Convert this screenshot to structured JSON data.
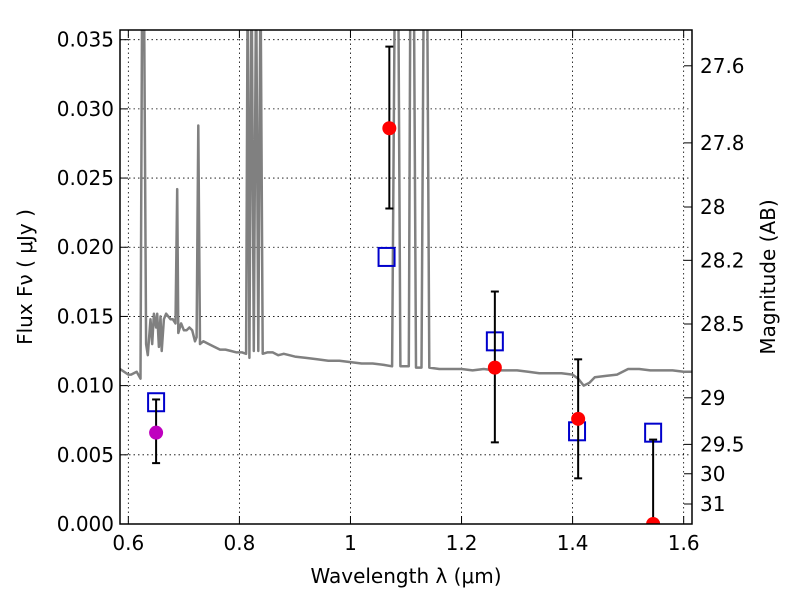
{
  "chart_data": {
    "type": "scatter",
    "xlabel": "Wavelength λ (μm)",
    "ylabel": "Flux Fν ( μJy )",
    "y2label": "Magnitude (AB)",
    "xlim": [
      0.585,
      1.615
    ],
    "ylim": [
      0.0,
      0.0357
    ],
    "grid": true,
    "x_ticks": [
      0.6,
      0.8,
      1.0,
      1.2,
      1.4,
      1.6
    ],
    "x_tick_labels": [
      "0.6",
      "0.8",
      "1",
      "1.2",
      "1.4",
      "1.6"
    ],
    "y_ticks": [
      0.0,
      0.005,
      0.01,
      0.015,
      0.02,
      0.025,
      0.03,
      0.035
    ],
    "y_tick_labels": [
      "0.000",
      "0.005",
      "0.010",
      "0.015",
      "0.020",
      "0.025",
      "0.030",
      "0.035"
    ],
    "mag_ticks": [
      27.6,
      27.8,
      28,
      28.2,
      28.5,
      29,
      29.5,
      30,
      31
    ],
    "mag_tick_labels": [
      "27.6",
      "27.8",
      "28",
      "28.2",
      "28.5",
      "29",
      "29.5",
      "30",
      "31"
    ],
    "colors": {
      "model": "#808080",
      "observed": "#ff0000",
      "observed_optical": "#bf00bf",
      "model_photometry": "#0000cc",
      "errorbar": "#000000"
    },
    "observed_points": [
      {
        "x": 0.65,
        "y": 0.0066,
        "yerr_low": 0.0044,
        "yerr_high": 0.009,
        "color": "#bf00bf"
      },
      {
        "x": 1.07,
        "y": 0.0286,
        "yerr_low": 0.0228,
        "yerr_high": 0.0345,
        "color": "#ff0000"
      },
      {
        "x": 1.26,
        "y": 0.0113,
        "yerr_low": 0.0059,
        "yerr_high": 0.0168,
        "color": "#ff0000"
      },
      {
        "x": 1.41,
        "y": 0.0076,
        "yerr_low": 0.0033,
        "yerr_high": 0.0119,
        "color": "#ff0000"
      },
      {
        "x": 1.545,
        "y": 0.0,
        "yerr_low": 0.0,
        "yerr_high": 0.0061,
        "color": "#ff0000"
      }
    ],
    "model_photometry": [
      {
        "x": 0.65,
        "y": 0.0088
      },
      {
        "x": 1.065,
        "y": 0.0193
      },
      {
        "x": 1.26,
        "y": 0.0132
      },
      {
        "x": 1.408,
        "y": 0.0067
      },
      {
        "x": 1.545,
        "y": 0.0066
      }
    ],
    "model_spectrum": [
      [
        0.585,
        0.0112
      ],
      [
        0.6,
        0.0108
      ],
      [
        0.605,
        0.0108
      ],
      [
        0.615,
        0.011
      ],
      [
        0.622,
        0.0105
      ],
      [
        0.625,
        0.04
      ],
      [
        0.628,
        0.04
      ],
      [
        0.632,
        0.013
      ],
      [
        0.635,
        0.0122
      ],
      [
        0.64,
        0.0148
      ],
      [
        0.643,
        0.013
      ],
      [
        0.646,
        0.0152
      ],
      [
        0.65,
        0.0142
      ],
      [
        0.652,
        0.0152
      ],
      [
        0.655,
        0.0128
      ],
      [
        0.658,
        0.015
      ],
      [
        0.66,
        0.0125
      ],
      [
        0.664,
        0.0148
      ],
      [
        0.668,
        0.0152
      ],
      [
        0.672,
        0.015
      ],
      [
        0.676,
        0.0148
      ],
      [
        0.68,
        0.0148
      ],
      [
        0.685,
        0.0145
      ],
      [
        0.688,
        0.0242
      ],
      [
        0.69,
        0.0138
      ],
      [
        0.695,
        0.0145
      ],
      [
        0.7,
        0.014
      ],
      [
        0.705,
        0.014
      ],
      [
        0.71,
        0.0142
      ],
      [
        0.715,
        0.014
      ],
      [
        0.72,
        0.0132
      ],
      [
        0.723,
        0.0135
      ],
      [
        0.726,
        0.0288
      ],
      [
        0.729,
        0.013
      ],
      [
        0.735,
        0.0132
      ],
      [
        0.745,
        0.013
      ],
      [
        0.755,
        0.0128
      ],
      [
        0.765,
        0.0126
      ],
      [
        0.775,
        0.0126
      ],
      [
        0.785,
        0.0125
      ],
      [
        0.795,
        0.0124
      ],
      [
        0.805,
        0.0124
      ],
      [
        0.812,
        0.0123
      ],
      [
        0.815,
        0.04
      ],
      [
        0.818,
        0.012
      ],
      [
        0.822,
        0.04
      ],
      [
        0.826,
        0.0125
      ],
      [
        0.83,
        0.04
      ],
      [
        0.834,
        0.0125
      ],
      [
        0.838,
        0.04
      ],
      [
        0.842,
        0.0123
      ],
      [
        0.85,
        0.0124
      ],
      [
        0.86,
        0.0124
      ],
      [
        0.87,
        0.0122
      ],
      [
        0.88,
        0.0123
      ],
      [
        0.89,
        0.0122
      ],
      [
        0.9,
        0.0121
      ],
      [
        0.92,
        0.012
      ],
      [
        0.94,
        0.0119
      ],
      [
        0.96,
        0.0118
      ],
      [
        0.98,
        0.0118
      ],
      [
        1.0,
        0.0117
      ],
      [
        1.02,
        0.0116
      ],
      [
        1.04,
        0.0116
      ],
      [
        1.06,
        0.0115
      ],
      [
        1.075,
        0.0114
      ],
      [
        1.08,
        0.04
      ],
      [
        1.086,
        0.04
      ],
      [
        1.09,
        0.0114
      ],
      [
        1.105,
        0.0114
      ],
      [
        1.108,
        0.04
      ],
      [
        1.114,
        0.04
      ],
      [
        1.118,
        0.0113
      ],
      [
        1.128,
        0.0113
      ],
      [
        1.132,
        0.04
      ],
      [
        1.138,
        0.04
      ],
      [
        1.142,
        0.0113
      ],
      [
        1.16,
        0.0112
      ],
      [
        1.18,
        0.0112
      ],
      [
        1.2,
        0.0112
      ],
      [
        1.22,
        0.0111
      ],
      [
        1.24,
        0.0112
      ],
      [
        1.26,
        0.0111
      ],
      [
        1.28,
        0.0111
      ],
      [
        1.3,
        0.0111
      ],
      [
        1.32,
        0.011
      ],
      [
        1.34,
        0.0109
      ],
      [
        1.36,
        0.0109
      ],
      [
        1.38,
        0.0109
      ],
      [
        1.4,
        0.0108
      ],
      [
        1.41,
        0.0105
      ],
      [
        1.42,
        0.01
      ],
      [
        1.43,
        0.0102
      ],
      [
        1.44,
        0.0106
      ],
      [
        1.46,
        0.0107
      ],
      [
        1.48,
        0.0108
      ],
      [
        1.5,
        0.0112
      ],
      [
        1.52,
        0.0112
      ],
      [
        1.54,
        0.0111
      ],
      [
        1.56,
        0.0111
      ],
      [
        1.58,
        0.0111
      ],
      [
        1.6,
        0.011
      ],
      [
        1.615,
        0.011
      ]
    ]
  }
}
